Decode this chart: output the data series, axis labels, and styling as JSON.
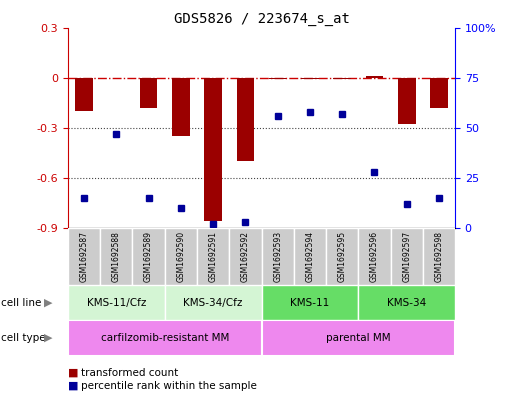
{
  "title": "GDS5826 / 223674_s_at",
  "samples": [
    "GSM1692587",
    "GSM1692588",
    "GSM1692589",
    "GSM1692590",
    "GSM1692591",
    "GSM1692592",
    "GSM1692593",
    "GSM1692594",
    "GSM1692595",
    "GSM1692596",
    "GSM1692597",
    "GSM1692598"
  ],
  "transformed_count": [
    -0.2,
    0.0,
    -0.18,
    -0.35,
    -0.86,
    -0.5,
    -0.01,
    -0.01,
    -0.01,
    0.01,
    -0.28,
    -0.18
  ],
  "percentile_rank": [
    15,
    47,
    15,
    10,
    2,
    3,
    56,
    58,
    57,
    28,
    12,
    15
  ],
  "cell_line_groups": [
    {
      "label": "KMS-11/Cfz",
      "start": 0,
      "end": 2,
      "color": "#d4f5d4"
    },
    {
      "label": "KMS-34/Cfz",
      "start": 3,
      "end": 5,
      "color": "#d4f5d4"
    },
    {
      "label": "KMS-11",
      "start": 6,
      "end": 8,
      "color": "#66dd66"
    },
    {
      "label": "KMS-34",
      "start": 9,
      "end": 11,
      "color": "#66dd66"
    }
  ],
  "cell_type_groups": [
    {
      "label": "carfilzomib-resistant MM",
      "start": 0,
      "end": 5,
      "color": "#ee88ee"
    },
    {
      "label": "parental MM",
      "start": 6,
      "end": 11,
      "color": "#ee88ee"
    }
  ],
  "ylim_left": [
    -0.9,
    0.3
  ],
  "ylim_right": [
    0,
    100
  ],
  "yticks_left": [
    -0.9,
    -0.6,
    -0.3,
    0.0,
    0.3
  ],
  "ytick_labels_left": [
    "-0.9",
    "-0.6",
    "-0.3",
    "0",
    "0.3"
  ],
  "yticks_right": [
    0,
    25,
    50,
    75,
    100
  ],
  "ytick_labels_right": [
    "0",
    "25",
    "50",
    "75",
    "100%"
  ],
  "bar_color": "#9B0000",
  "dot_color": "#000099",
  "hline_color": "#CC0000",
  "dotted_line_color": "#444444",
  "dotted_lines": [
    -0.3,
    -0.6
  ],
  "sample_box_color": "#CCCCCC",
  "cell_line_label": "cell line",
  "cell_type_label": "cell type",
  "legend_bar_label": "transformed count",
  "legend_dot_label": "percentile rank within the sample"
}
